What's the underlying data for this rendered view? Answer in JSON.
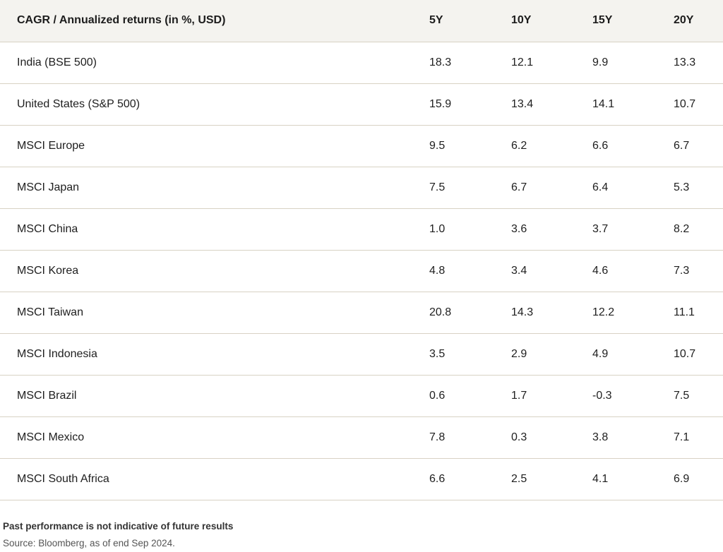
{
  "table": {
    "headers": [
      "CAGR / Annualized returns (in %, USD)",
      "5Y",
      "10Y",
      "15Y",
      "20Y"
    ],
    "rows": [
      [
        "India (BSE 500)",
        "18.3",
        "12.1",
        "9.9",
        "13.3"
      ],
      [
        "United States (S&P 500)",
        "15.9",
        "13.4",
        "14.1",
        "10.7"
      ],
      [
        "MSCI Europe",
        "9.5",
        "6.2",
        "6.6",
        "6.7"
      ],
      [
        "MSCI Japan",
        "7.5",
        "6.7",
        "6.4",
        "5.3"
      ],
      [
        "MSCI China",
        "1.0",
        "3.6",
        "3.7",
        "8.2"
      ],
      [
        "MSCI Korea",
        "4.8",
        "3.4",
        "4.6",
        "7.3"
      ],
      [
        "MSCI Taiwan",
        "20.8",
        "14.3",
        "12.2",
        "11.1"
      ],
      [
        "MSCI Indonesia",
        "3.5",
        "2.9",
        "4.9",
        "10.7"
      ],
      [
        "MSCI Brazil",
        "0.6",
        "1.7",
        "-0.3",
        "7.5"
      ],
      [
        "MSCI Mexico",
        "7.8",
        "0.3",
        "3.8",
        "7.1"
      ],
      [
        "MSCI South Africa",
        "6.6",
        "2.5",
        "4.1",
        "6.9"
      ]
    ]
  },
  "footer": {
    "disclaimer": "Past performance is not indicative of future results",
    "source": "Source: Bloomberg, as of end Sep 2024."
  },
  "colors": {
    "header_bg": "#f4f3ef",
    "row_divider": "#d8d2c4",
    "text": "#1e1e1e"
  }
}
